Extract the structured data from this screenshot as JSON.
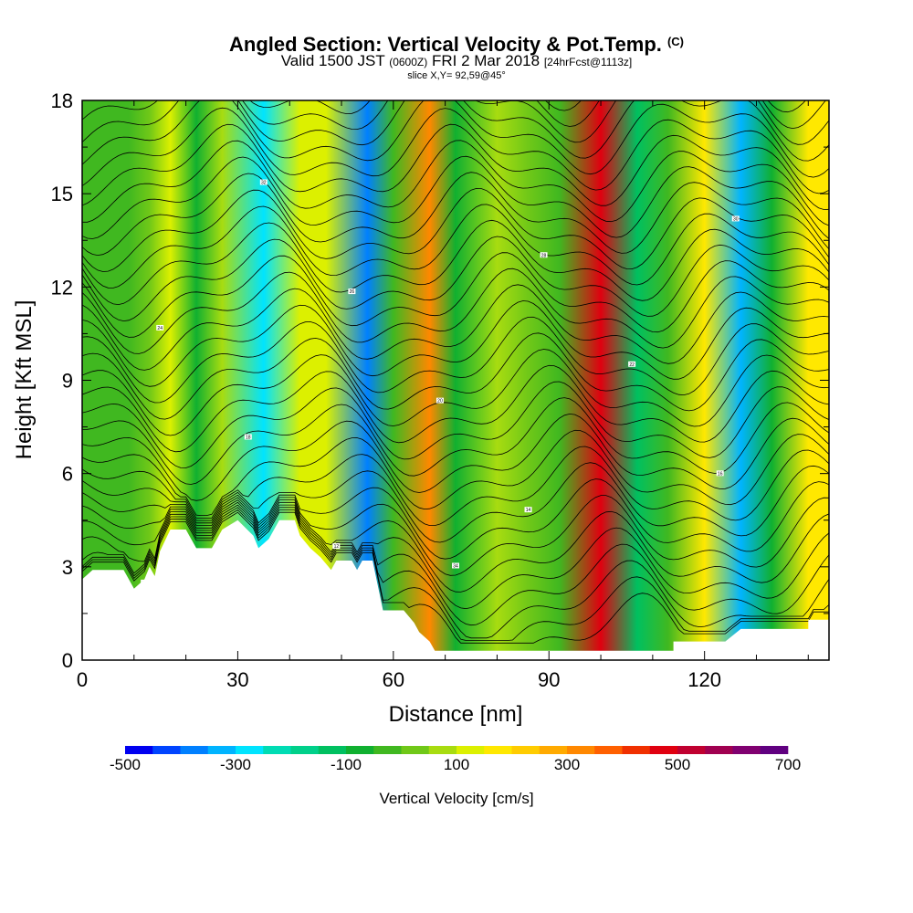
{
  "header": {
    "title": "Angled Section: Vertical Velocity & Pot.Temp.",
    "title_mark": "(C)",
    "valid_prefix": "Valid 1500 JST",
    "valid_utc": "(0600Z)",
    "valid_date": "FRI 2 Mar 2018",
    "forecast": "[24hrFcst@1113z]",
    "slice": "slice X,Y= 92,59@45°"
  },
  "chart_data": {
    "type": "heatmap",
    "xlabel": "Distance [nm]",
    "ylabel": "Height [Kft MSL]",
    "xlim": [
      0,
      144
    ],
    "ylim": [
      0,
      18
    ],
    "x_ticks": [
      0,
      30,
      60,
      90,
      120
    ],
    "y_ticks": [
      0,
      3,
      6,
      9,
      12,
      15,
      18
    ],
    "colorbar": {
      "label": "Vertical Velocity [cm/s]",
      "min": -500,
      "max": 700,
      "step": 50,
      "tick_values": [
        -500,
        -300,
        -100,
        100,
        300,
        500,
        700
      ],
      "tick_labels": [
        "-500",
        "-300",
        "-100",
        "100",
        "300",
        "500",
        "700"
      ],
      "colors": [
        "#0000f0",
        "#0044ff",
        "#0080ff",
        "#00b4ff",
        "#00e4ff",
        "#00dcb4",
        "#00d08a",
        "#00c060",
        "#10b030",
        "#40b820",
        "#70c818",
        "#a8dc10",
        "#dcf000",
        "#ffe800",
        "#ffcc00",
        "#ffaa00",
        "#ff8800",
        "#ff6000",
        "#f03000",
        "#e00010",
        "#c00030",
        "#a00050",
        "#800070",
        "#600080"
      ]
    },
    "velocity_features": [
      {
        "x": 9,
        "velocity": -40
      },
      {
        "x": 13,
        "velocity": 20
      },
      {
        "x": 17,
        "velocity": 100
      },
      {
        "x": 22,
        "velocity": -60
      },
      {
        "x": 27,
        "velocity": 60
      },
      {
        "x": 35,
        "velocity": -280
      },
      {
        "x": 42,
        "velocity": 100
      },
      {
        "x": 47,
        "velocity": 140
      },
      {
        "x": 55,
        "velocity": -360
      },
      {
        "x": 60,
        "velocity": -40
      },
      {
        "x": 67,
        "velocity": 300
      },
      {
        "x": 72,
        "velocity": -60
      },
      {
        "x": 80,
        "velocity": 60
      },
      {
        "x": 86,
        "velocity": 30
      },
      {
        "x": 92,
        "velocity": -30
      },
      {
        "x": 100,
        "velocity": 480
      },
      {
        "x": 107,
        "velocity": -120
      },
      {
        "x": 113,
        "velocity": -30
      },
      {
        "x": 120,
        "velocity": 180
      },
      {
        "x": 127,
        "velocity": -320
      },
      {
        "x": 133,
        "velocity": -60
      },
      {
        "x": 140,
        "velocity": 160
      }
    ],
    "terrain": [
      [
        0,
        2.6
      ],
      [
        2,
        2.9
      ],
      [
        8,
        2.9
      ],
      [
        10,
        2.3
      ],
      [
        12,
        2.6
      ],
      [
        13,
        3.0
      ],
      [
        14,
        2.7
      ],
      [
        15,
        3.5
      ],
      [
        17,
        4.2
      ],
      [
        20,
        4.2
      ],
      [
        21,
        3.9
      ],
      [
        22,
        3.6
      ],
      [
        25,
        3.6
      ],
      [
        26,
        3.9
      ],
      [
        27,
        4.2
      ],
      [
        30,
        4.5
      ],
      [
        33,
        4.0
      ],
      [
        34,
        3.6
      ],
      [
        36,
        3.9
      ],
      [
        37,
        4.2
      ],
      [
        38,
        4.5
      ],
      [
        41,
        4.5
      ],
      [
        42,
        4.0
      ],
      [
        44,
        3.6
      ],
      [
        46,
        3.3
      ],
      [
        48,
        2.9
      ],
      [
        49,
        3.2
      ],
      [
        52,
        3.2
      ],
      [
        53,
        2.9
      ],
      [
        54,
        3.2
      ],
      [
        56,
        3.2
      ],
      [
        58,
        1.6
      ],
      [
        62,
        1.6
      ],
      [
        64,
        1.2
      ],
      [
        65,
        0.9
      ],
      [
        67,
        0.6
      ],
      [
        68,
        0.3
      ],
      [
        92,
        0.3
      ],
      [
        108,
        0.3
      ],
      [
        114,
        0.3
      ],
      [
        114,
        0.6
      ],
      [
        124,
        0.6
      ],
      [
        127,
        1.0
      ],
      [
        140,
        1.0
      ],
      [
        140,
        1.3
      ],
      [
        144,
        1.3
      ]
    ],
    "theta_contours_count": 36,
    "theta_values_k": [
      10,
      12,
      14,
      16,
      18,
      20,
      22,
      24,
      26,
      28,
      30,
      32,
      34
    ]
  }
}
